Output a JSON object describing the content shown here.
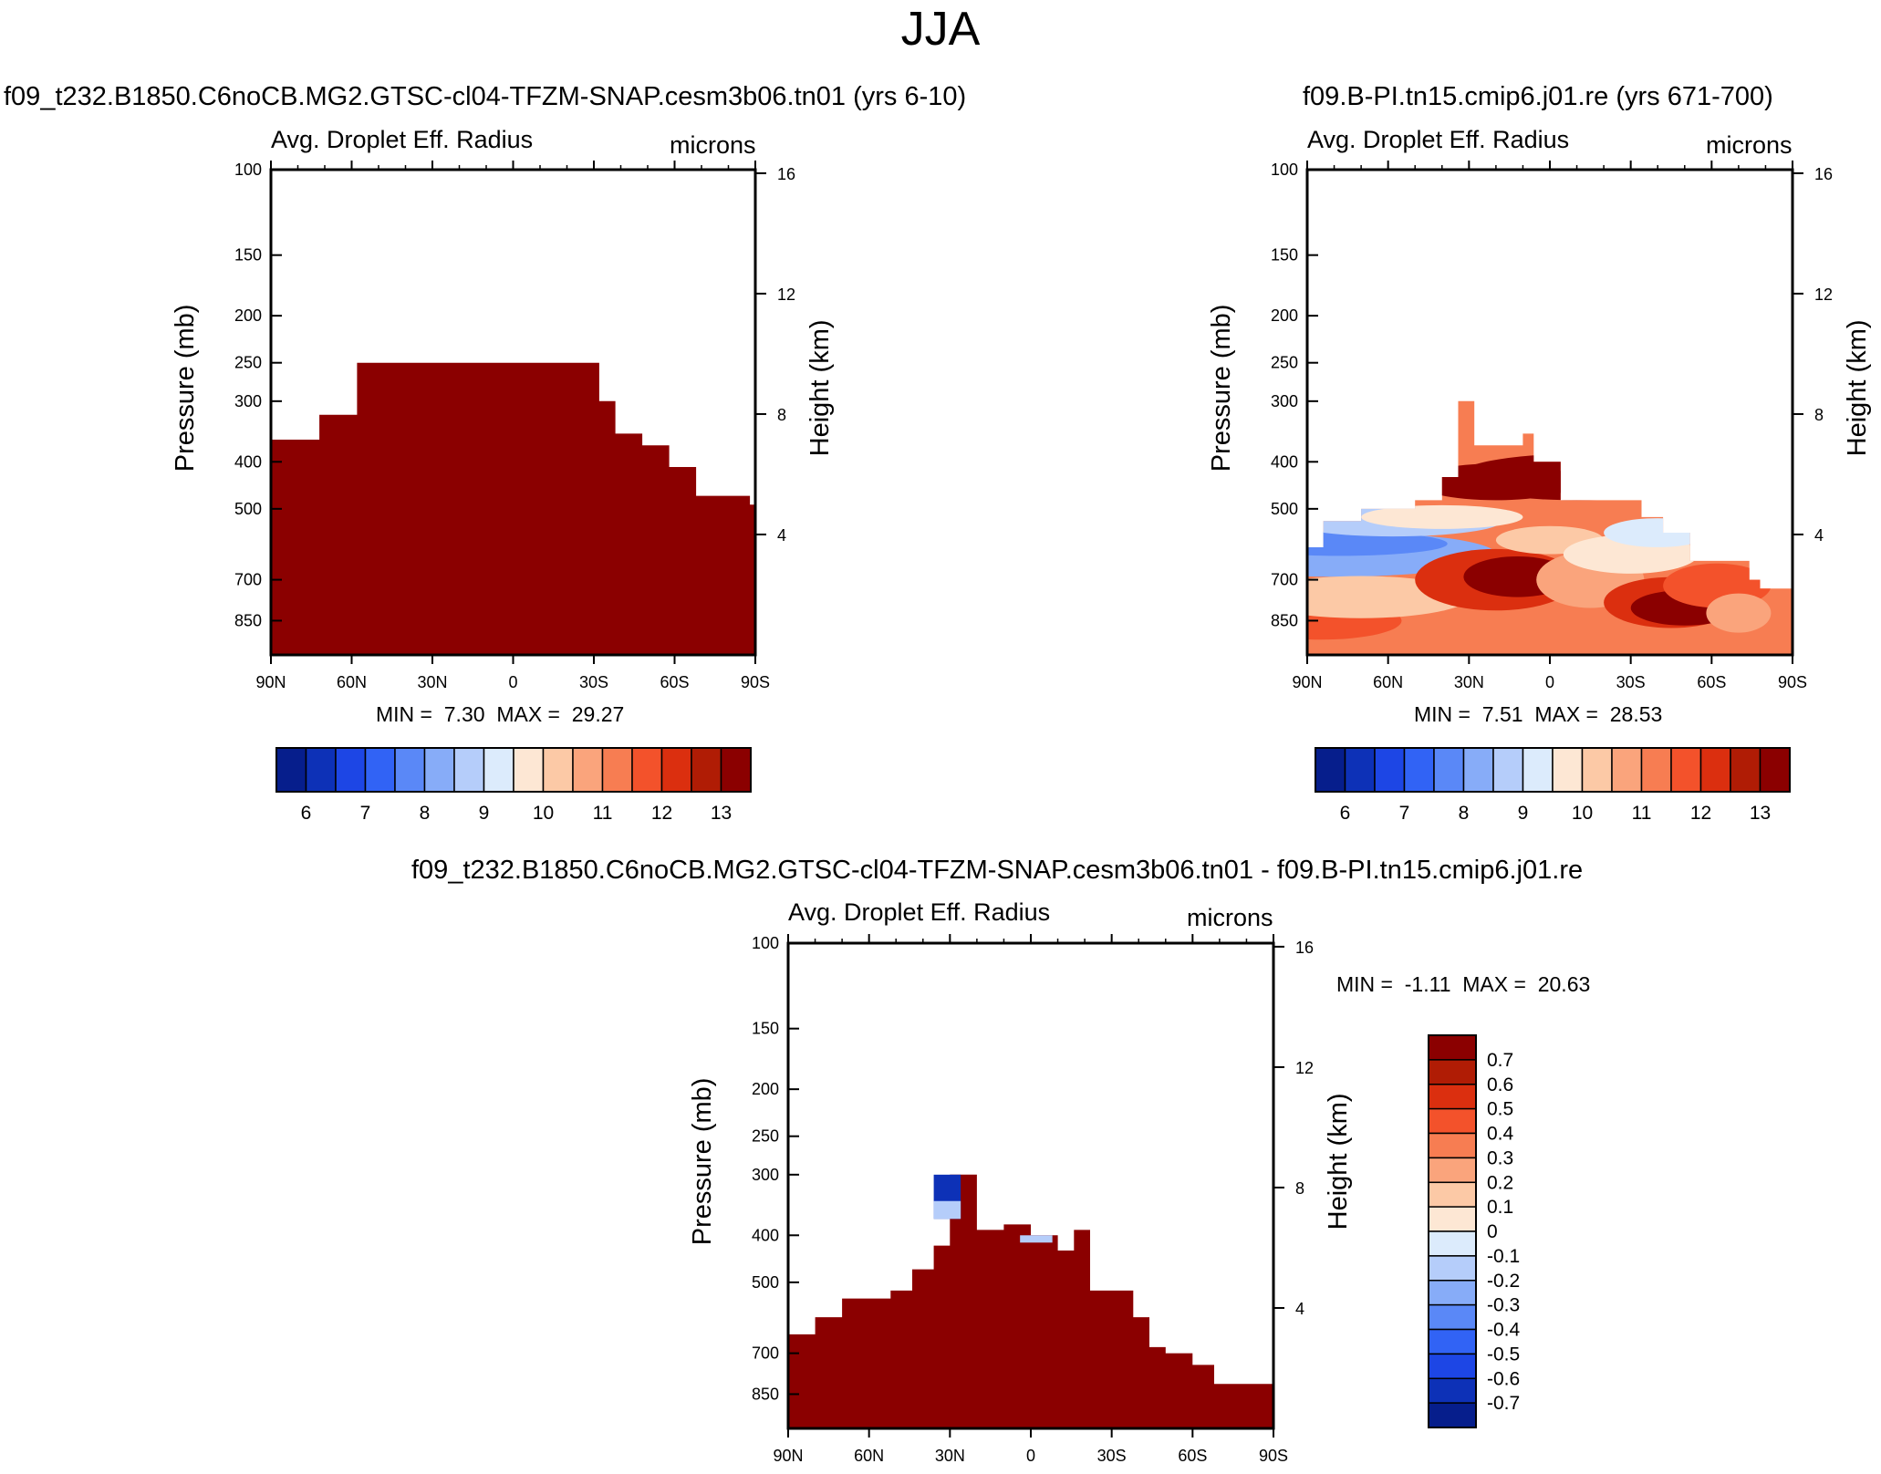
{
  "main_title": "JJA",
  "colors": {
    "frame": "#000000",
    "dark_red": "#8b0000",
    "background": "#ffffff"
  },
  "colormap": [
    "#061e8c",
    "#0d31b7",
    "#1d46e5",
    "#3163f5",
    "#5a88f7",
    "#87acf8",
    "#b5cdfa",
    "#dcebfc",
    "#fde7d4",
    "#fcc9a6",
    "#faa47c",
    "#f77d52",
    "#f3522b",
    "#db2f0f",
    "#b01c05",
    "#8b0000"
  ],
  "chart_data": [
    {
      "type": "heatmap",
      "case_title": "f09_t232.B1850.C6noCB.MG2.GTSC-cl04-TFZM-SNAP.cesm3b06.tn01 (yrs 6-10)",
      "variable": "Avg. Droplet Eff. Radius",
      "units": "microns",
      "xlabel": "",
      "ylabel": "Pressure (mb)",
      "y2label": "Height (km)",
      "xticks": [
        "90N",
        "60N",
        "30N",
        "0",
        "30S",
        "60S",
        "90S"
      ],
      "yticks": [
        "100",
        "150",
        "200",
        "250",
        "300",
        "400",
        "500",
        "700",
        "850"
      ],
      "y2ticks": [
        "16",
        "12",
        "8",
        "4"
      ],
      "stats": {
        "min_label": "MIN =",
        "min": "7.30",
        "max_label": "MAX =",
        "max": "29.27"
      },
      "colorbar_labels": [
        "6",
        "7",
        "8",
        "9",
        "10",
        "11",
        "12",
        "13"
      ],
      "field_top_pressure_mb": [
        [
          -90,
          360
        ],
        [
          -80,
          360
        ],
        [
          -72,
          320
        ],
        [
          -58,
          250
        ],
        [
          -40,
          250
        ],
        [
          -20,
          250
        ],
        [
          0,
          250
        ],
        [
          20,
          250
        ],
        [
          28,
          250
        ],
        [
          32,
          300
        ],
        [
          38,
          350
        ],
        [
          48,
          370
        ],
        [
          58,
          410
        ],
        [
          68,
          470
        ],
        [
          78,
          470
        ],
        [
          88,
          490
        ],
        [
          90,
          490
        ]
      ]
    },
    {
      "type": "heatmap",
      "case_title": "f09.B-PI.tn15.cmip6.j01.re (yrs 671-700)",
      "variable": "Avg. Droplet Eff. Radius",
      "units": "microns",
      "xlabel": "",
      "ylabel": "Pressure (mb)",
      "y2label": "Height (km)",
      "xticks": [
        "90N",
        "60N",
        "30N",
        "0",
        "30S",
        "60S",
        "90S"
      ],
      "yticks": [
        "100",
        "150",
        "200",
        "250",
        "300",
        "400",
        "500",
        "700",
        "850"
      ],
      "y2ticks": [
        "16",
        "12",
        "8",
        "4"
      ],
      "stats": {
        "min_label": "MIN =",
        "min": "7.51",
        "max_label": "MAX =",
        "max": "28.53"
      },
      "colorbar_labels": [
        "6",
        "7",
        "8",
        "9",
        "10",
        "11",
        "12",
        "13"
      ]
    },
    {
      "type": "heatmap",
      "case_title": "f09_t232.B1850.C6noCB.MG2.GTSC-cl04-TFZM-SNAP.cesm3b06.tn01 - f09.B-PI.tn15.cmip6.j01.re",
      "variable": "Avg. Droplet Eff. Radius",
      "units": "microns",
      "xlabel": "",
      "ylabel": "Pressure (mb)",
      "y2label": "Height (km)",
      "xticks": [
        "90N",
        "60N",
        "30N",
        "0",
        "30S",
        "60S",
        "90S"
      ],
      "yticks": [
        "100",
        "150",
        "200",
        "250",
        "300",
        "400",
        "500",
        "700",
        "850"
      ],
      "y2ticks": [
        "16",
        "12",
        "8",
        "4"
      ],
      "stats": {
        "min_label": "MIN =",
        "min": "-1.11",
        "max_label": "MAX =",
        "max": "20.63"
      },
      "colorbar_labels": [
        "0.7",
        "0.6",
        "0.5",
        "0.4",
        "0.3",
        "0.2",
        "0.1",
        "0",
        "-0.1",
        "-0.2",
        "-0.3",
        "-0.4",
        "-0.5",
        "-0.6",
        "-0.7"
      ],
      "field_top_pressure_mb": [
        [
          -90,
          640
        ],
        [
          -80,
          590
        ],
        [
          -70,
          540
        ],
        [
          -60,
          540
        ],
        [
          -52,
          520
        ],
        [
          -44,
          470
        ],
        [
          -36,
          420
        ],
        [
          -30,
          300
        ],
        [
          -20,
          390
        ],
        [
          -10,
          380
        ],
        [
          0,
          400
        ],
        [
          10,
          430
        ],
        [
          16,
          390
        ],
        [
          22,
          520
        ],
        [
          32,
          520
        ],
        [
          38,
          590
        ],
        [
          44,
          680
        ],
        [
          50,
          700
        ],
        [
          60,
          740
        ],
        [
          68,
          810
        ],
        [
          78,
          810
        ],
        [
          90,
          810
        ]
      ]
    }
  ]
}
